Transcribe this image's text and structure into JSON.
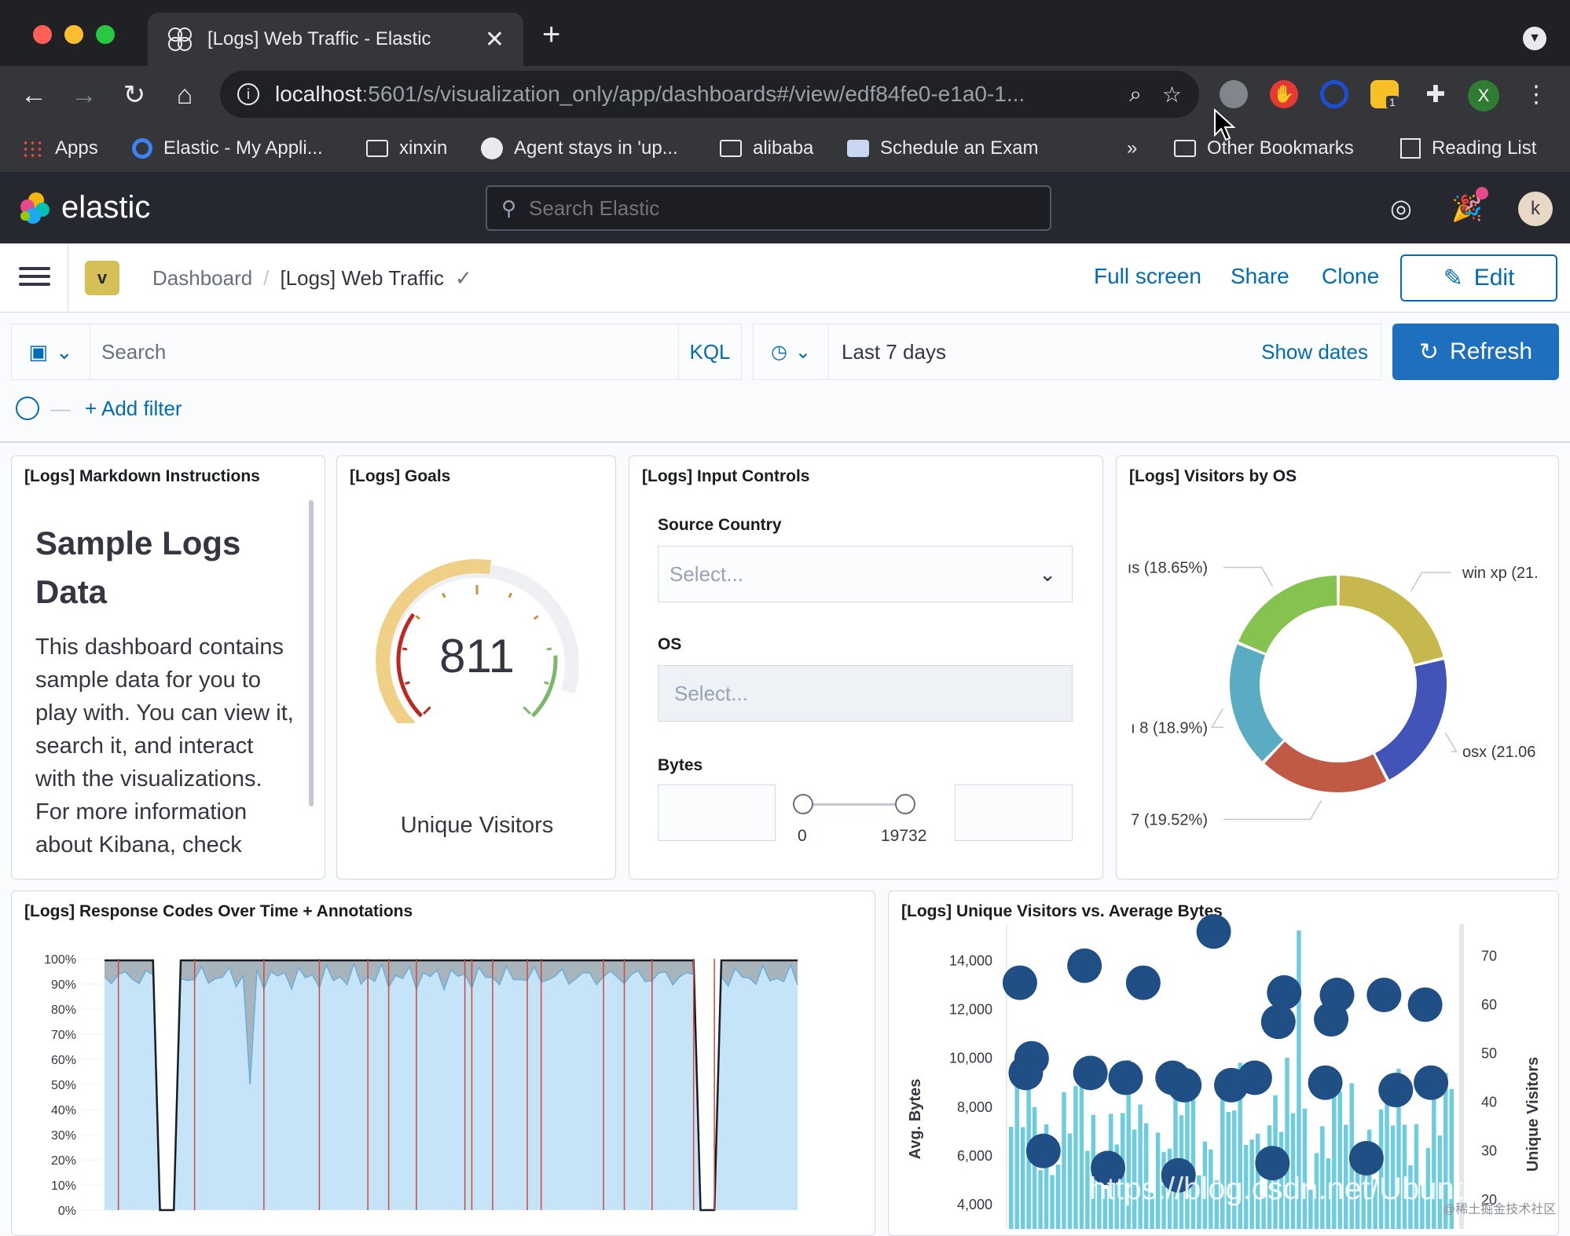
{
  "browser": {
    "tab_title": "[Logs] Web Traffic - Elastic",
    "url_host": "localhost",
    "url_path": ":5601/s/visualization_only/app/dashboards#/view/edf84fe0-e1a0-1...",
    "bookmarks": [
      "Apps",
      "Elastic - My Appli...",
      "xinxin",
      "Agent stays in 'up...",
      "alibaba",
      "Schedule an Exam"
    ],
    "overflow": "»",
    "other_bookmarks": "Other Bookmarks",
    "reading_list": "Reading List",
    "ext_badge": "1",
    "profile_initial": "X"
  },
  "kibana": {
    "logo_text": "elastic",
    "search_placeholder": "Search Elastic",
    "avatar_initial": "k",
    "space_initial": "v",
    "breadcrumb": [
      "Dashboard",
      "[Logs] Web Traffic"
    ],
    "actions": {
      "full_screen": "Full screen",
      "share": "Share",
      "clone": "Clone",
      "edit": "Edit"
    },
    "query": {
      "placeholder": "Search",
      "language": "KQL"
    },
    "time": {
      "range": "Last 7 days",
      "show_dates": "Show dates",
      "refresh": "Refresh"
    },
    "add_filter": "+ Add filter"
  },
  "panels": {
    "markdown": {
      "title": "[Logs] Markdown Instructions",
      "heading": "Sample Logs Data",
      "body": "This dashboard contains sample data for you to play with. You can view it, search it, and interact with the visualizations. For more information about Kibana, check"
    },
    "goals": {
      "title": "[Logs] Goals",
      "value": "811",
      "label": "Unique Visitors",
      "fill_fraction": 0.53
    },
    "controls": {
      "title": "[Logs] Input Controls",
      "source_country_label": "Source Country",
      "source_country_placeholder": "Select...",
      "os_label": "OS",
      "os_placeholder": "Select...",
      "bytes_label": "Bytes",
      "bytes_min": "0",
      "bytes_max": "19732"
    },
    "visitors_by_os": {
      "title": "[Logs] Visitors by OS"
    },
    "response_codes": {
      "title": "[Logs] Response Codes Over Time + Annotations"
    },
    "unique_vs_bytes": {
      "title": "[Logs] Unique Visitors vs. Average Bytes"
    }
  },
  "chart_data": [
    {
      "type": "pie",
      "title": "[Logs] Visitors by OS",
      "slices": [
        {
          "label": "win xp (21.",
          "value": 21.0,
          "color": "#c6b84c"
        },
        {
          "label": "osx (21.06",
          "value": 21.06,
          "color": "#4254b8"
        },
        {
          "label": "7 (19.52%)",
          "value": 19.52,
          "color": "#c05a44"
        },
        {
          "label": "ı 8 (18.9%)",
          "value": 18.9,
          "color": "#5aacc2"
        },
        {
          "label": "ıs (18.65%)",
          "value": 18.65,
          "color": "#86c24f"
        }
      ]
    },
    {
      "type": "area",
      "title": "[Logs] Response Codes Over Time + Annotations",
      "yticks": [
        "100%",
        "90%",
        "80%",
        "70%",
        "60%",
        "50%",
        "40%",
        "30%",
        "20%",
        "10%",
        "0%"
      ],
      "ylim": [
        0,
        100
      ],
      "dips": [
        9,
        87
      ],
      "annotation_count": 17
    },
    {
      "type": "scatter",
      "title": "[Logs] Unique Visitors vs. Average Bytes",
      "ylabel": "Avg. Bytes",
      "y2label": "Unique Visitors",
      "yticks": [
        "14,000",
        "12,000",
        "10,000",
        "8,000",
        "6,000",
        "4,000"
      ],
      "y2ticks": [
        "70",
        "60",
        "50",
        "40",
        "30",
        "20"
      ],
      "points": [
        [
          2,
          13100
        ],
        [
          13,
          13800
        ],
        [
          23,
          13100
        ],
        [
          35,
          15200
        ],
        [
          47,
          12700
        ],
        [
          56,
          12600
        ],
        [
          64,
          12600
        ],
        [
          71,
          12200
        ],
        [
          4,
          10000
        ],
        [
          14,
          9400
        ],
        [
          20,
          9200
        ],
        [
          28,
          9200
        ],
        [
          30,
          8900
        ],
        [
          38,
          8900
        ],
        [
          42,
          9200
        ],
        [
          46,
          11500
        ],
        [
          55,
          11600
        ],
        [
          54,
          9000
        ],
        [
          66,
          8700
        ],
        [
          72,
          9000
        ],
        [
          3,
          9400
        ],
        [
          6,
          6200
        ],
        [
          17,
          5500
        ],
        [
          29,
          5200
        ],
        [
          45,
          5700
        ],
        [
          61,
          5900
        ]
      ]
    }
  ],
  "watermark": "https://blog.csdn.net/Ubunt",
  "watermark2": "@稀土掘金技术社区"
}
